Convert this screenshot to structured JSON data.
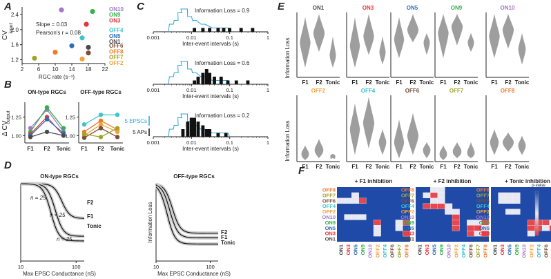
{
  "panel_letters": [
    "A",
    "B",
    "C",
    "D",
    "E",
    "F"
  ],
  "colors": {
    "ON1": "#4a4a4a",
    "ON3": "#e8333b",
    "ON5": "#2f6db5",
    "ON9": "#33b04a",
    "ON10": "#a476c8",
    "OFF2": "#f2a23a",
    "OFF4": "#3ec4cf",
    "OFF6": "#7a4f3a",
    "OFF7": "#a3a32a",
    "OFF8": "#f07a2a",
    "hist_blue": "#2aa7d6",
    "violin": "#9e9e9e",
    "heat_bg": "#1f4aa8"
  },
  "chart_data": [
    {
      "panel": "A",
      "type": "scatter",
      "xlabel": "RGC rate (s⁻¹)",
      "ylabel": "CV",
      "ylabel_sub": "input",
      "xlim": [
        2,
        22
      ],
      "ylim": [
        1.1,
        2.6
      ],
      "xticks": [
        "2",
        "6",
        "10",
        "14",
        "18",
        "22"
      ],
      "yticks": [
        "1.2",
        "1.6",
        "2.0",
        "2.4"
      ],
      "annotations": [
        "Slope = 0.03",
        "Pearson's r = 0.08"
      ],
      "legend": [
        "ON10",
        "ON9",
        "ON3",
        "OFF4",
        "ON5",
        "ON1",
        "OFF6",
        "OFF8",
        "OFF7",
        "OFF2"
      ],
      "points": [
        {
          "name": "ON10",
          "x": 11.5,
          "y": 2.52
        },
        {
          "name": "ON9",
          "x": 19.0,
          "y": 2.48
        },
        {
          "name": "ON3",
          "x": 17.5,
          "y": 2.14
        },
        {
          "name": "OFF4",
          "x": 16.5,
          "y": 1.78
        },
        {
          "name": "ON5",
          "x": 14.0,
          "y": 1.57
        },
        {
          "name": "ON1",
          "x": 18.0,
          "y": 1.53
        },
        {
          "name": "OFF6",
          "x": 18.0,
          "y": 1.38
        },
        {
          "name": "OFF8",
          "x": 10.0,
          "y": 1.4
        },
        {
          "name": "OFF7",
          "x": 5.0,
          "y": 1.24
        },
        {
          "name": "OFF2",
          "x": 16.5,
          "y": 1.22
        }
      ]
    },
    {
      "panel": "B",
      "type": "line",
      "ylabel": "Δ CV",
      "ylabel_sub": "output",
      "categories": [
        "F1",
        "F2",
        "Tonic"
      ],
      "ylim": [
        0.9,
        1.45
      ],
      "yticks": [
        "1.00",
        "1.25"
      ],
      "groups": [
        {
          "title": "ON-type RGCs",
          "series": [
            {
              "name": "ON10",
              "values": [
                1.1,
                1.35,
                1.05
              ]
            },
            {
              "name": "ON9",
              "values": [
                1.05,
                1.38,
                1.1
              ]
            },
            {
              "name": "ON3",
              "values": [
                1.02,
                1.25,
                1.0
              ]
            },
            {
              "name": "ON5",
              "values": [
                1.0,
                1.22,
                1.03
              ]
            },
            {
              "name": "ON1",
              "values": [
                0.98,
                1.05,
                1.0
              ]
            }
          ]
        },
        {
          "title": "OFF-type RGCs",
          "series": [
            {
              "name": "OFF4",
              "values": [
                1.15,
                1.28,
                1.28
              ]
            },
            {
              "name": "OFF8",
              "values": [
                1.05,
                1.2,
                1.08
              ]
            },
            {
              "name": "OFF2",
              "values": [
                1.0,
                1.15,
                1.05
              ]
            },
            {
              "name": "OFF6",
              "values": [
                0.97,
                1.1,
                0.98
              ]
            },
            {
              "name": "OFF7",
              "values": [
                1.02,
                0.98,
                1.1
              ]
            }
          ]
        }
      ]
    },
    {
      "panel": "C",
      "type": "histogram",
      "xlabel": "Inter-event intervals (s)",
      "xticks": [
        "0.001",
        "0.01",
        "0.1",
        "1"
      ],
      "scale_bars": [
        "5 EPSCs",
        "5 APs"
      ],
      "rows": [
        {
          "label": "Information Loss = 0.9",
          "epsc": [
            [
              0.003,
              2
            ],
            [
              0.004,
              3
            ],
            [
              0.005,
              5
            ],
            [
              0.006,
              6
            ],
            [
              0.007,
              6
            ],
            [
              0.009,
              4
            ],
            [
              0.012,
              3
            ],
            [
              0.02,
              2
            ],
            [
              0.04,
              1
            ],
            [
              0.08,
              1
            ]
          ],
          "ap": [
            [
              0.012,
              1
            ],
            [
              0.02,
              1
            ],
            [
              0.03,
              1
            ],
            [
              0.05,
              1
            ],
            [
              0.07,
              1
            ],
            [
              0.1,
              1
            ],
            [
              0.2,
              1
            ],
            [
              0.4,
              1
            ]
          ]
        },
        {
          "label": "Information Loss = 0.6",
          "epsc": [
            [
              0.003,
              2
            ],
            [
              0.004,
              3
            ],
            [
              0.005,
              5
            ],
            [
              0.006,
              6
            ],
            [
              0.007,
              6
            ],
            [
              0.009,
              4
            ],
            [
              0.012,
              3
            ],
            [
              0.02,
              2
            ],
            [
              0.04,
              1
            ],
            [
              0.08,
              1
            ]
          ],
          "ap": [
            [
              0.012,
              1
            ],
            [
              0.015,
              2
            ],
            [
              0.02,
              3
            ],
            [
              0.025,
              4
            ],
            [
              0.03,
              3
            ],
            [
              0.04,
              2
            ],
            [
              0.06,
              2
            ],
            [
              0.09,
              1
            ],
            [
              0.15,
              1
            ],
            [
              0.3,
              1
            ]
          ]
        },
        {
          "label": "Information Loss = 0.2",
          "epsc": [
            [
              0.003,
              2
            ],
            [
              0.004,
              3
            ],
            [
              0.005,
              5
            ],
            [
              0.006,
              6
            ],
            [
              0.007,
              6
            ],
            [
              0.009,
              4
            ],
            [
              0.012,
              3
            ],
            [
              0.02,
              2
            ],
            [
              0.04,
              1
            ],
            [
              0.08,
              1
            ]
          ],
          "ap": [
            [
              0.006,
              2
            ],
            [
              0.008,
              4
            ],
            [
              0.01,
              5
            ],
            [
              0.012,
              5
            ],
            [
              0.015,
              4
            ],
            [
              0.02,
              3
            ],
            [
              0.025,
              2
            ],
            [
              0.03,
              2
            ],
            [
              0.05,
              1
            ],
            [
              0.08,
              1
            ]
          ]
        }
      ]
    },
    {
      "panel": "D",
      "type": "line",
      "xlabel": "Max EPSC Conductance (nS)",
      "ylabel": "Information Loss",
      "xticks": [
        "10",
        "100"
      ],
      "groups": [
        {
          "title": "ON-type RGCs",
          "n_labels": [
            "n = 25",
            "n = 25",
            "n = 25"
          ],
          "series": [
            {
              "name": "F2",
              "mid": 55,
              "final": 0.55
            },
            {
              "name": "F1",
              "mid": 42,
              "final": 0.32
            },
            {
              "name": "Tonic",
              "mid": 35,
              "final": 0.26
            }
          ]
        },
        {
          "title": "OFF-type RGCs",
          "series": [
            {
              "name": "F2",
              "mid": 20,
              "final": 0.36
            },
            {
              "name": "F1",
              "mid": 18,
              "final": 0.3
            },
            {
              "name": "Tonic",
              "mid": 16,
              "final": 0.22
            }
          ]
        }
      ]
    },
    {
      "panel": "E",
      "type": "violin",
      "ylabel": "Information Loss",
      "categories": [
        "F1",
        "F2",
        "Tonic"
      ],
      "subplots": [
        {
          "name": "ON1",
          "shapes": [
            [
              0.55,
              0.85,
              0.15,
              0.95
            ],
            [
              0.7,
              0.9,
              0.4,
              1.0
            ],
            [
              0.35,
              0.5,
              0.15,
              0.65
            ]
          ]
        },
        {
          "name": "ON3",
          "shapes": [
            [
              0.5,
              0.8,
              0.15,
              0.95
            ],
            [
              0.65,
              0.85,
              0.35,
              1.0
            ],
            [
              0.4,
              0.5,
              0.2,
              0.65
            ]
          ]
        },
        {
          "name": "ON5",
          "shapes": [
            [
              0.6,
              0.8,
              0.3,
              0.95
            ],
            [
              0.75,
              0.9,
              0.55,
              1.0
            ],
            [
              0.55,
              0.5,
              0.35,
              0.7
            ]
          ]
        },
        {
          "name": "ON9",
          "shapes": [
            [
              0.7,
              0.85,
              0.3,
              1.0
            ],
            [
              0.8,
              0.9,
              0.5,
              1.0
            ],
            [
              0.55,
              0.5,
              0.4,
              0.7
            ]
          ]
        },
        {
          "name": "ON10",
          "shapes": [
            [
              0.65,
              0.85,
              0.3,
              1.0
            ],
            [
              0.75,
              0.9,
              0.45,
              1.0
            ],
            [
              0.45,
              0.6,
              0.2,
              0.7
            ]
          ]
        },
        {
          "name": "OFF2",
          "shapes": [
            [
              0.12,
              0.6,
              0.02,
              0.25
            ],
            [
              0.18,
              0.7,
              0.05,
              0.35
            ],
            [
              0.08,
              0.4,
              0.05,
              0.12
            ]
          ]
        },
        {
          "name": "OFF4",
          "shapes": [
            [
              0.5,
              0.8,
              0.1,
              0.9
            ],
            [
              0.6,
              0.9,
              0.2,
              1.0
            ],
            [
              0.3,
              0.6,
              0.1,
              0.5
            ]
          ]
        },
        {
          "name": "OFF6",
          "shapes": [
            [
              0.3,
              0.8,
              0.05,
              0.65
            ],
            [
              0.4,
              0.9,
              0.1,
              0.75
            ],
            [
              0.18,
              0.6,
              0.05,
              0.3
            ]
          ]
        },
        {
          "name": "OFF7",
          "shapes": [
            [
              0.12,
              0.6,
              0.02,
              0.25
            ],
            [
              0.16,
              0.7,
              0.05,
              0.3
            ],
            [
              0.14,
              0.6,
              0.05,
              0.3
            ]
          ]
        },
        {
          "name": "OFF8",
          "shapes": [
            [
              0.3,
              0.7,
              0.1,
              0.5
            ],
            [
              0.3,
              0.9,
              0.15,
              0.45
            ],
            [
              0.25,
              0.6,
              0.1,
              0.4
            ]
          ]
        }
      ]
    },
    {
      "panel": "F",
      "type": "heatmap",
      "rows": [
        "OFF8",
        "OFF7",
        "OFF6",
        "OFF4",
        "OFF2",
        "ON10",
        "ON9",
        "ON5",
        "ON3",
        "ON1"
      ],
      "cols": [
        "ON1",
        "ON3",
        "ON5",
        "ON9",
        "ON10",
        "OFF2",
        "OFF4",
        "OFF6",
        "OFF7",
        "OFF8"
      ],
      "colorbar_label": "p-value",
      "subplots": [
        {
          "title": "+ F1 inhibition",
          "cells": [
            [
              2,
              0,
              "w"
            ],
            [
              2,
              1,
              "w"
            ],
            [
              2,
              2,
              "w"
            ],
            [
              2,
              3,
              "r"
            ],
            [
              1,
              2,
              "w"
            ],
            [
              5,
              1,
              "w"
            ],
            [
              5,
              2,
              "w"
            ],
            [
              5,
              3,
              "w"
            ],
            [
              6,
              5,
              "r"
            ],
            [
              7,
              5,
              "w"
            ],
            [
              8,
              5,
              "w"
            ],
            [
              6,
              8,
              "w"
            ],
            [
              6,
              9,
              "r"
            ],
            [
              7,
              8,
              "w"
            ],
            [
              8,
              9,
              "r"
            ]
          ]
        },
        {
          "title": "+ F2 inhibition",
          "cells": [
            [
              0,
              2,
              "w"
            ],
            [
              0,
              3,
              "w"
            ],
            [
              1,
              1,
              "w"
            ],
            [
              1,
              2,
              "r"
            ],
            [
              1,
              3,
              "w"
            ],
            [
              2,
              2,
              "w"
            ],
            [
              2,
              3,
              "w"
            ],
            [
              3,
              1,
              "r"
            ],
            [
              3,
              2,
              "r"
            ],
            [
              3,
              3,
              "r"
            ],
            [
              3,
              4,
              "w"
            ],
            [
              4,
              4,
              "w"
            ],
            [
              4,
              5,
              "w"
            ],
            [
              5,
              5,
              "r"
            ],
            [
              6,
              5,
              "r"
            ],
            [
              7,
              5,
              "r"
            ],
            [
              6,
              7,
              "w"
            ],
            [
              7,
              7,
              "r"
            ],
            [
              8,
              7,
              "r"
            ],
            [
              6,
              8,
              "w"
            ],
            [
              7,
              8,
              "r"
            ],
            [
              8,
              8,
              "w"
            ],
            [
              6,
              9,
              "r"
            ],
            [
              7,
              9,
              "w"
            ],
            [
              8,
              9,
              "r"
            ]
          ]
        },
        {
          "title": "+ Tonic inhibition",
          "cells": [
            [
              1,
              1,
              "w"
            ],
            [
              1,
              2,
              "w"
            ],
            [
              1,
              3,
              "w"
            ],
            [
              2,
              1,
              "w"
            ],
            [
              2,
              2,
              "w"
            ],
            [
              2,
              3,
              "w"
            ],
            [
              4,
              2,
              "w"
            ],
            [
              4,
              3,
              "w"
            ],
            [
              6,
              5,
              "r"
            ],
            [
              7,
              5,
              "r"
            ],
            [
              8,
              5,
              "w"
            ],
            [
              6,
              6,
              "r"
            ],
            [
              7,
              6,
              "r"
            ],
            [
              6,
              7,
              "r"
            ],
            [
              7,
              7,
              "w"
            ],
            [
              6,
              8,
              "w"
            ],
            [
              7,
              8,
              "r"
            ],
            [
              6,
              9,
              "w"
            ],
            [
              7,
              9,
              "r"
            ]
          ]
        }
      ]
    }
  ]
}
